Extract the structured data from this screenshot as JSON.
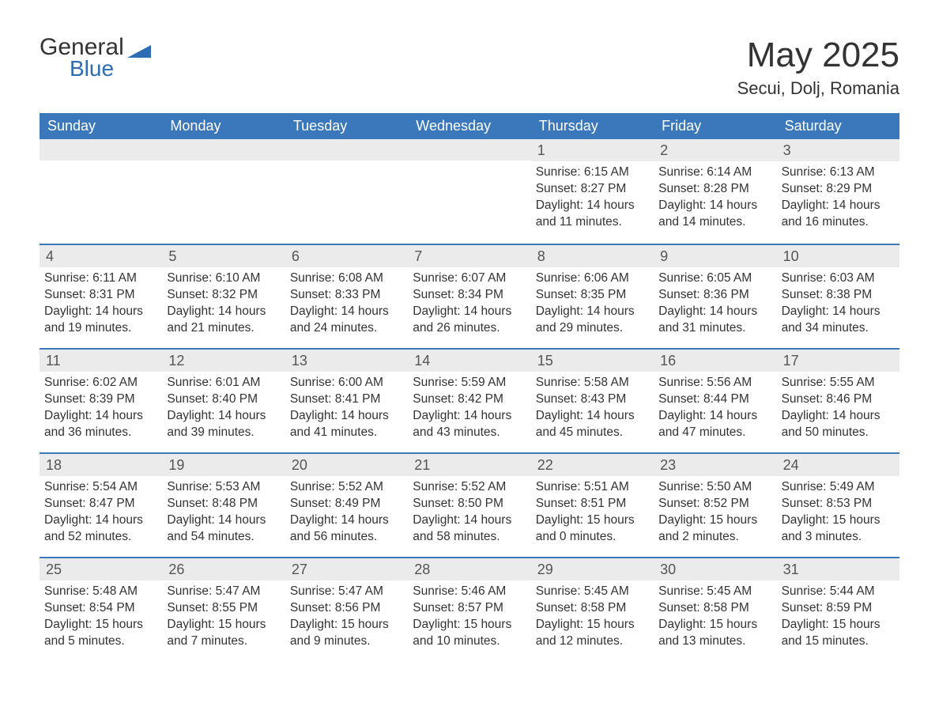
{
  "logo": {
    "text_general": "General",
    "text_blue": "Blue",
    "icon_color": "#2e6db4"
  },
  "title": "May 2025",
  "subtitle": "Secui, Dolj, Romania",
  "colors": {
    "header_bg": "#3a78bb",
    "header_text": "#ffffff",
    "dateband_bg": "#ebebeb",
    "week_border": "#3a78bb",
    "body_text": "#333333"
  },
  "weekdays": [
    "Sunday",
    "Monday",
    "Tuesday",
    "Wednesday",
    "Thursday",
    "Friday",
    "Saturday"
  ],
  "weeks": [
    [
      null,
      null,
      null,
      null,
      {
        "n": "1",
        "sunrise": "Sunrise: 6:15 AM",
        "sunset": "Sunset: 8:27 PM",
        "daylight": "Daylight: 14 hours and 11 minutes."
      },
      {
        "n": "2",
        "sunrise": "Sunrise: 6:14 AM",
        "sunset": "Sunset: 8:28 PM",
        "daylight": "Daylight: 14 hours and 14 minutes."
      },
      {
        "n": "3",
        "sunrise": "Sunrise: 6:13 AM",
        "sunset": "Sunset: 8:29 PM",
        "daylight": "Daylight: 14 hours and 16 minutes."
      }
    ],
    [
      {
        "n": "4",
        "sunrise": "Sunrise: 6:11 AM",
        "sunset": "Sunset: 8:31 PM",
        "daylight": "Daylight: 14 hours and 19 minutes."
      },
      {
        "n": "5",
        "sunrise": "Sunrise: 6:10 AM",
        "sunset": "Sunset: 8:32 PM",
        "daylight": "Daylight: 14 hours and 21 minutes."
      },
      {
        "n": "6",
        "sunrise": "Sunrise: 6:08 AM",
        "sunset": "Sunset: 8:33 PM",
        "daylight": "Daylight: 14 hours and 24 minutes."
      },
      {
        "n": "7",
        "sunrise": "Sunrise: 6:07 AM",
        "sunset": "Sunset: 8:34 PM",
        "daylight": "Daylight: 14 hours and 26 minutes."
      },
      {
        "n": "8",
        "sunrise": "Sunrise: 6:06 AM",
        "sunset": "Sunset: 8:35 PM",
        "daylight": "Daylight: 14 hours and 29 minutes."
      },
      {
        "n": "9",
        "sunrise": "Sunrise: 6:05 AM",
        "sunset": "Sunset: 8:36 PM",
        "daylight": "Daylight: 14 hours and 31 minutes."
      },
      {
        "n": "10",
        "sunrise": "Sunrise: 6:03 AM",
        "sunset": "Sunset: 8:38 PM",
        "daylight": "Daylight: 14 hours and 34 minutes."
      }
    ],
    [
      {
        "n": "11",
        "sunrise": "Sunrise: 6:02 AM",
        "sunset": "Sunset: 8:39 PM",
        "daylight": "Daylight: 14 hours and 36 minutes."
      },
      {
        "n": "12",
        "sunrise": "Sunrise: 6:01 AM",
        "sunset": "Sunset: 8:40 PM",
        "daylight": "Daylight: 14 hours and 39 minutes."
      },
      {
        "n": "13",
        "sunrise": "Sunrise: 6:00 AM",
        "sunset": "Sunset: 8:41 PM",
        "daylight": "Daylight: 14 hours and 41 minutes."
      },
      {
        "n": "14",
        "sunrise": "Sunrise: 5:59 AM",
        "sunset": "Sunset: 8:42 PM",
        "daylight": "Daylight: 14 hours and 43 minutes."
      },
      {
        "n": "15",
        "sunrise": "Sunrise: 5:58 AM",
        "sunset": "Sunset: 8:43 PM",
        "daylight": "Daylight: 14 hours and 45 minutes."
      },
      {
        "n": "16",
        "sunrise": "Sunrise: 5:56 AM",
        "sunset": "Sunset: 8:44 PM",
        "daylight": "Daylight: 14 hours and 47 minutes."
      },
      {
        "n": "17",
        "sunrise": "Sunrise: 5:55 AM",
        "sunset": "Sunset: 8:46 PM",
        "daylight": "Daylight: 14 hours and 50 minutes."
      }
    ],
    [
      {
        "n": "18",
        "sunrise": "Sunrise: 5:54 AM",
        "sunset": "Sunset: 8:47 PM",
        "daylight": "Daylight: 14 hours and 52 minutes."
      },
      {
        "n": "19",
        "sunrise": "Sunrise: 5:53 AM",
        "sunset": "Sunset: 8:48 PM",
        "daylight": "Daylight: 14 hours and 54 minutes."
      },
      {
        "n": "20",
        "sunrise": "Sunrise: 5:52 AM",
        "sunset": "Sunset: 8:49 PM",
        "daylight": "Daylight: 14 hours and 56 minutes."
      },
      {
        "n": "21",
        "sunrise": "Sunrise: 5:52 AM",
        "sunset": "Sunset: 8:50 PM",
        "daylight": "Daylight: 14 hours and 58 minutes."
      },
      {
        "n": "22",
        "sunrise": "Sunrise: 5:51 AM",
        "sunset": "Sunset: 8:51 PM",
        "daylight": "Daylight: 15 hours and 0 minutes."
      },
      {
        "n": "23",
        "sunrise": "Sunrise: 5:50 AM",
        "sunset": "Sunset: 8:52 PM",
        "daylight": "Daylight: 15 hours and 2 minutes."
      },
      {
        "n": "24",
        "sunrise": "Sunrise: 5:49 AM",
        "sunset": "Sunset: 8:53 PM",
        "daylight": "Daylight: 15 hours and 3 minutes."
      }
    ],
    [
      {
        "n": "25",
        "sunrise": "Sunrise: 5:48 AM",
        "sunset": "Sunset: 8:54 PM",
        "daylight": "Daylight: 15 hours and 5 minutes."
      },
      {
        "n": "26",
        "sunrise": "Sunrise: 5:47 AM",
        "sunset": "Sunset: 8:55 PM",
        "daylight": "Daylight: 15 hours and 7 minutes."
      },
      {
        "n": "27",
        "sunrise": "Sunrise: 5:47 AM",
        "sunset": "Sunset: 8:56 PM",
        "daylight": "Daylight: 15 hours and 9 minutes."
      },
      {
        "n": "28",
        "sunrise": "Sunrise: 5:46 AM",
        "sunset": "Sunset: 8:57 PM",
        "daylight": "Daylight: 15 hours and 10 minutes."
      },
      {
        "n": "29",
        "sunrise": "Sunrise: 5:45 AM",
        "sunset": "Sunset: 8:58 PM",
        "daylight": "Daylight: 15 hours and 12 minutes."
      },
      {
        "n": "30",
        "sunrise": "Sunrise: 5:45 AM",
        "sunset": "Sunset: 8:58 PM",
        "daylight": "Daylight: 15 hours and 13 minutes."
      },
      {
        "n": "31",
        "sunrise": "Sunrise: 5:44 AM",
        "sunset": "Sunset: 8:59 PM",
        "daylight": "Daylight: 15 hours and 15 minutes."
      }
    ]
  ]
}
